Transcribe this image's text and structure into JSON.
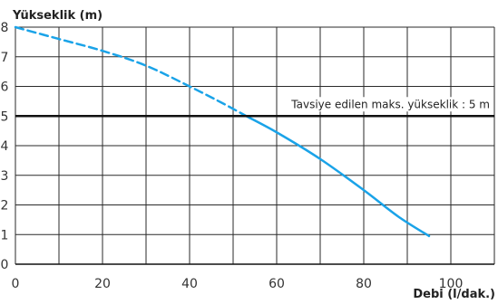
{
  "chart_data": {
    "type": "line",
    "title": "",
    "ylabel": "Yükseklik (m)",
    "xlabel": "Debi (l/dak.)",
    "xlim": [
      0,
      110
    ],
    "ylim": [
      0,
      8
    ],
    "x_ticks": [
      0,
      20,
      40,
      60,
      80,
      100
    ],
    "x_tick_labels": [
      "0",
      "20",
      "40",
      "60",
      "80",
      "100"
    ],
    "y_ticks": [
      0,
      1,
      2,
      3,
      4,
      5,
      6,
      7,
      8
    ],
    "y_tick_labels": [
      "0",
      "1",
      "2",
      "3",
      "4",
      "5",
      "6",
      "7",
      "8"
    ],
    "x_grid": [
      0,
      10,
      20,
      30,
      40,
      50,
      60,
      70,
      80,
      90,
      100,
      110
    ],
    "grid": true,
    "series": [
      {
        "style": "dashed",
        "color": "#1aa3e8",
        "x": [
          0,
          10,
          20,
          30,
          40,
          48,
          53
        ],
        "y": [
          8,
          7.6,
          7.2,
          6.7,
          6.0,
          5.4,
          5.0
        ]
      },
      {
        "style": "solid",
        "color": "#1aa3e8",
        "x": [
          53,
          60,
          70,
          80,
          88,
          95
        ],
        "y": [
          5.0,
          4.45,
          3.55,
          2.5,
          1.6,
          0.95
        ]
      }
    ],
    "reference_line": {
      "y": 5,
      "color": "#111111",
      "label": "Tavsiye edilen maks. yükseklik : 5 m"
    }
  }
}
